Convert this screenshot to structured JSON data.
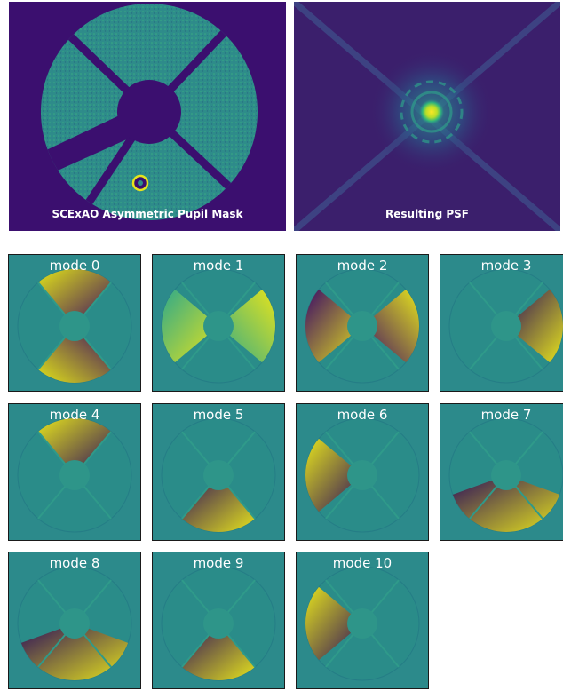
{
  "panels": {
    "mask": {
      "caption": "SCExAO Asymmetric Pupil Mask"
    },
    "psf": {
      "caption": "Resulting PSF"
    }
  },
  "modes": [
    {
      "label": "mode 0",
      "shape": "vertical",
      "colors": [
        "#e2e418",
        "#3a0a62"
      ]
    },
    {
      "label": "mode 1",
      "shape": "horizontal",
      "colors": [
        "#2fa98a",
        "#e6e41c"
      ]
    },
    {
      "label": "mode 2",
      "shape": "horizontal",
      "colors": [
        "#3d0c66",
        "#e6e41c"
      ]
    },
    {
      "label": "mode 3",
      "shape": "single",
      "colors": [
        "#2a0c5c",
        "#e6e41c"
      ]
    },
    {
      "label": "mode 4",
      "shape": "single",
      "colors": [
        "#e6e41c",
        "#2a0c5c"
      ]
    },
    {
      "label": "mode 5",
      "shape": "single",
      "colors": [
        "#2a0c5c",
        "#e6e41c"
      ]
    },
    {
      "label": "mode 6",
      "shape": "single",
      "colors": [
        "#e6e41c",
        "#2a0c5c"
      ]
    },
    {
      "label": "mode 7",
      "shape": "ringband",
      "colors": [
        "#2a0c5c",
        "#e6e41c"
      ]
    },
    {
      "label": "mode 8",
      "shape": "ringband",
      "colors": [
        "#2a0c5c",
        "#e6e41c"
      ]
    },
    {
      "label": "mode 9",
      "shape": "single",
      "colors": [
        "#2a0c5c",
        "#e6e41c"
      ]
    },
    {
      "label": "mode 10",
      "shape": "single",
      "colors": [
        "#e6e41c",
        "#2a0c5c"
      ]
    }
  ]
}
